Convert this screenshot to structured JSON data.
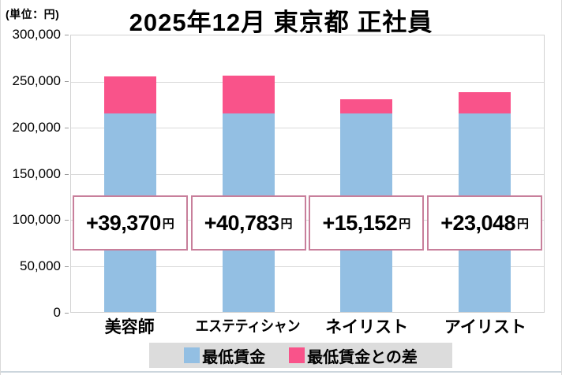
{
  "header": {
    "unit_label": "(単位：円)",
    "title": "2025年12月 東京都 正社員"
  },
  "chart_data": {
    "type": "bar",
    "stacked": true,
    "title": "2025年12月 東京都 正社員",
    "unit": "円",
    "categories": [
      "美容師",
      "エステティシャン",
      "ネイリスト",
      "アイリスト"
    ],
    "series": [
      {
        "name": "最低賃金",
        "color": "#93bfe3",
        "values": [
          215776,
          215776,
          215776,
          215776
        ]
      },
      {
        "name": "最低賃金との差",
        "color": "#f9538a",
        "values": [
          39370,
          40783,
          15152,
          23048
        ]
      }
    ],
    "bar_totals": [
      255146,
      256559,
      230928,
      238824
    ],
    "annotations": [
      {
        "value_text": "+39,370",
        "suffix": "円"
      },
      {
        "value_text": "+40,783",
        "suffix": "円"
      },
      {
        "value_text": "+15,152",
        "suffix": "円"
      },
      {
        "value_text": "+23,048",
        "suffix": "円"
      }
    ],
    "ylim": [
      0,
      300000
    ],
    "ytick_labels": [
      "300,000",
      "250,000",
      "200,000",
      "150,000",
      "100,000",
      "50,000",
      "0"
    ],
    "grid": true,
    "legend_position": "bottom"
  },
  "legend": {
    "items": [
      {
        "label": "最低賃金",
        "color": "#93bfe3"
      },
      {
        "label": "最低賃金との差",
        "color": "#f9538a"
      }
    ]
  },
  "colors": {
    "min_wage_bar": "#93bfe3",
    "diff_bar": "#f9538a",
    "annotation_border": "#c87f9b",
    "legend_background": "#dcdcdc",
    "gridline": "#dadada"
  }
}
